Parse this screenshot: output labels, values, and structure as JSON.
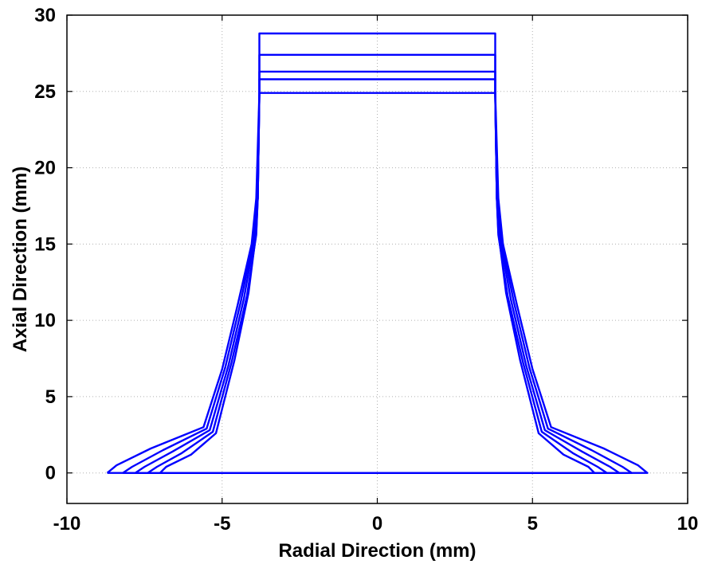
{
  "chart_data": {
    "type": "line",
    "title": "",
    "xlabel": "Radial Direction (mm)",
    "ylabel": "Axial Direction (mm)",
    "xlim": [
      -10,
      10
    ],
    "ylim": [
      -2,
      30
    ],
    "xticks": [
      -10,
      -5,
      0,
      5,
      10
    ],
    "yticks": [
      0,
      5,
      10,
      15,
      20,
      25,
      30
    ],
    "grid": true,
    "grid_style": "dotted",
    "legend": "none",
    "line_color": "#0000ff",
    "series": [
      {
        "x": [
          -8.7,
          -8.4,
          -7.3,
          -5.6,
          -5.0,
          -4.5,
          -4.05,
          -3.9,
          -3.8,
          -3.8,
          3.8,
          3.8,
          3.9,
          4.05,
          4.5,
          5.0,
          5.6,
          7.3,
          8.4,
          8.7,
          -8.7
        ],
        "y": [
          0,
          0.5,
          1.6,
          3.0,
          6.8,
          11.0,
          15.0,
          18.0,
          24.9,
          28.8,
          28.8,
          24.9,
          18.0,
          15.0,
          11.0,
          6.8,
          3.0,
          1.6,
          0.5,
          0,
          0
        ]
      },
      {
        "x": [
          -8.2,
          -7.9,
          -6.9,
          -5.5,
          -4.9,
          -4.4,
          -4.0,
          -3.85,
          -3.8,
          -3.8,
          3.8,
          3.8,
          3.85,
          4.0,
          4.4,
          4.9,
          5.5,
          6.9,
          7.9,
          8.2,
          -8.2
        ],
        "y": [
          0,
          0.4,
          1.5,
          2.9,
          6.9,
          11.2,
          15.2,
          18.0,
          24.9,
          27.4,
          27.4,
          24.9,
          18.0,
          15.2,
          11.2,
          6.9,
          2.9,
          1.5,
          0.4,
          0,
          0
        ]
      },
      {
        "x": [
          -7.8,
          -7.5,
          -6.6,
          -5.4,
          -4.8,
          -4.3,
          -3.95,
          -3.85,
          -3.8,
          -3.8,
          3.8,
          3.8,
          3.85,
          3.95,
          4.3,
          4.8,
          5.4,
          6.6,
          7.5,
          7.8,
          -7.8
        ],
        "y": [
          0,
          0.4,
          1.4,
          2.8,
          7.0,
          11.4,
          15.4,
          18.0,
          24.8,
          26.3,
          26.3,
          24.8,
          18.0,
          15.4,
          11.4,
          7.0,
          2.8,
          1.4,
          0.4,
          0,
          0
        ]
      },
      {
        "x": [
          -7.4,
          -7.1,
          -6.3,
          -5.3,
          -4.7,
          -4.2,
          -3.9,
          -3.85,
          -3.8,
          -3.8,
          3.8,
          3.8,
          3.85,
          3.9,
          4.2,
          4.7,
          5.3,
          6.3,
          7.1,
          7.4,
          -7.4
        ],
        "y": [
          0,
          0.4,
          1.3,
          2.7,
          7.2,
          11.6,
          15.6,
          18.0,
          24.8,
          25.8,
          25.8,
          24.8,
          18.0,
          15.6,
          11.6,
          7.2,
          2.7,
          1.3,
          0.4,
          0,
          0
        ]
      },
      {
        "x": [
          -7.0,
          -6.8,
          -6.0,
          -5.2,
          -4.6,
          -4.15,
          -3.9,
          -3.85,
          -3.8,
          -3.8,
          3.8,
          3.8,
          3.85,
          3.9,
          4.15,
          4.6,
          5.2,
          6.0,
          6.8,
          7.0,
          -7.0
        ],
        "y": [
          0,
          0.4,
          1.2,
          2.6,
          7.4,
          11.8,
          15.8,
          18.0,
          24.7,
          24.9,
          24.9,
          24.7,
          18.0,
          15.8,
          11.8,
          7.4,
          2.6,
          1.2,
          0.4,
          0,
          0
        ]
      }
    ]
  }
}
